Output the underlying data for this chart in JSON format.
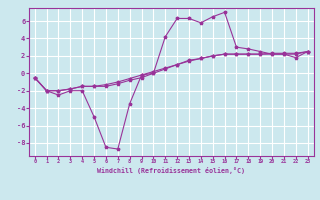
{
  "xlabel": "Windchill (Refroidissement éolien,°C)",
  "bg_color": "#cce8ee",
  "line_color": "#993399",
  "grid_color": "#ffffff",
  "x_hours": [
    0,
    1,
    2,
    3,
    4,
    5,
    6,
    7,
    8,
    9,
    10,
    11,
    12,
    13,
    14,
    15,
    16,
    17,
    18,
    19,
    20,
    21,
    22,
    23
  ],
  "curve1": [
    -0.5,
    -2.0,
    -2.5,
    -2.0,
    -2.0,
    -5.0,
    -8.5,
    -8.7,
    -3.5,
    -0.2,
    0.0,
    4.2,
    6.3,
    6.3,
    5.8,
    6.5,
    7.0,
    3.0,
    2.8,
    2.5,
    2.2,
    2.2,
    1.8,
    2.5
  ],
  "curve2": [
    -0.5,
    -2.0,
    -2.0,
    -1.8,
    -1.5,
    -1.5,
    -1.5,
    -1.2,
    -0.8,
    -0.5,
    0.0,
    0.5,
    1.0,
    1.5,
    1.7,
    2.0,
    2.2,
    2.2,
    2.2,
    2.2,
    2.2,
    2.2,
    2.2,
    2.5
  ],
  "curve3": [
    -0.5,
    -2.0,
    -2.0,
    -1.8,
    -1.5,
    -1.5,
    -1.3,
    -1.0,
    -0.6,
    -0.2,
    0.2,
    0.6,
    1.0,
    1.4,
    1.7,
    2.0,
    2.2,
    2.2,
    2.2,
    2.2,
    2.3,
    2.3,
    2.3,
    2.5
  ],
  "ylim": [
    -9.5,
    7.5
  ],
  "yticks": [
    -8,
    -6,
    -4,
    -2,
    0,
    2,
    4,
    6
  ],
  "xlim": [
    -0.5,
    23.5
  ]
}
